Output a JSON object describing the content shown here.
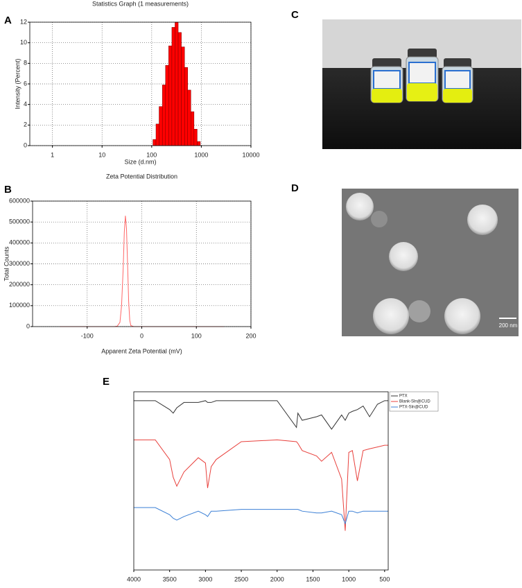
{
  "panels": [
    "A",
    "B",
    "C",
    "D",
    "E"
  ],
  "chart_data": [
    {
      "type": "histogram",
      "title": "Statistics Graph (1 measurements)",
      "x_label": "Size (d.nm)",
      "y_label": "Intensity (Percent)",
      "xscale": "log",
      "bins": [
        106,
        122,
        141,
        164,
        190,
        220,
        255,
        295,
        342,
        396,
        459,
        531,
        615,
        712,
        825,
        955
      ],
      "values": [
        0.6,
        2.1,
        3.8,
        5.9,
        7.8,
        9.7,
        11.5,
        12,
        11,
        9.6,
        7.6,
        5.4,
        3.3,
        1.6,
        0.4
      ],
      "color": "#ff0000",
      "xlim": [
        0.35,
        10000
      ],
      "xticks": [
        1,
        10,
        100,
        1000,
        10000
      ],
      "ylim": [
        0,
        12
      ],
      "yticks": [
        0,
        2,
        4,
        6,
        8,
        10,
        12
      ],
      "grid": true
    },
    {
      "type": "line",
      "title": "Zeta Potential Distribution",
      "x_label": "Apparent Zeta Potential (mV)",
      "y_label": "Total Counts",
      "x": [
        -150,
        -50,
        -45,
        -40,
        -37,
        -34,
        -32,
        -30,
        -28,
        -26,
        -24,
        -22,
        -20,
        -15,
        150
      ],
      "values": [
        0,
        0,
        2000,
        20000,
        100000,
        280000,
        450000,
        530000,
        470000,
        300000,
        120000,
        30000,
        5000,
        0,
        0
      ],
      "color": "#ff6666",
      "xlim": [
        -200,
        200
      ],
      "xticks": [
        -100,
        0,
        100,
        200
      ],
      "ylim": [
        0,
        600000
      ],
      "yticks": [
        0,
        100000,
        200000,
        300000,
        400000,
        500000,
        600000
      ],
      "grid": true
    },
    {
      "type": "line",
      "x": [
        4000,
        3700,
        3500,
        3450,
        3400,
        3300,
        3100,
        3000,
        2970,
        2920,
        2850,
        2500,
        2000,
        1730,
        1710,
        1650,
        1450,
        1380,
        1240,
        1100,
        1050,
        1000,
        950,
        880,
        800,
        710,
        600,
        500,
        450
      ],
      "series": [
        {
          "name": "PTX",
          "color": "#333333",
          "values": [
            95,
            95,
            90,
            88,
            91,
            94,
            94,
            95,
            94,
            94,
            95,
            95,
            95,
            80,
            88,
            84,
            86,
            87,
            79,
            87,
            84,
            88,
            89,
            90,
            92,
            86,
            93,
            95,
            95
          ]
        },
        {
          "name": "Blank-Sln@CUD",
          "color": "#e8403c",
          "values": [
            73,
            73,
            62,
            52,
            47,
            55,
            63,
            60,
            46,
            58,
            62,
            72,
            73,
            72,
            71,
            67,
            64,
            61,
            66,
            51,
            22,
            66,
            67,
            50,
            67,
            68,
            69,
            70,
            70
          ]
        },
        {
          "name": "PTX-Sln@CUD",
          "color": "#3a7fd5",
          "values": [
            35,
            35,
            31,
            29,
            28,
            30,
            33,
            31,
            30,
            33,
            33,
            34,
            34,
            34,
            34,
            33,
            32,
            32,
            33,
            31,
            26,
            33,
            33,
            32,
            33,
            33,
            33,
            33,
            33
          ]
        }
      ],
      "xlim": [
        4000,
        450
      ],
      "xticks": [
        4000,
        3500,
        3000,
        2500,
        2000,
        1500,
        1000,
        500
      ],
      "ylim": [
        0,
        100
      ],
      "legend": "upper right",
      "grid": false
    }
  ],
  "image_d": {
    "scale_bar": "200 nm"
  }
}
